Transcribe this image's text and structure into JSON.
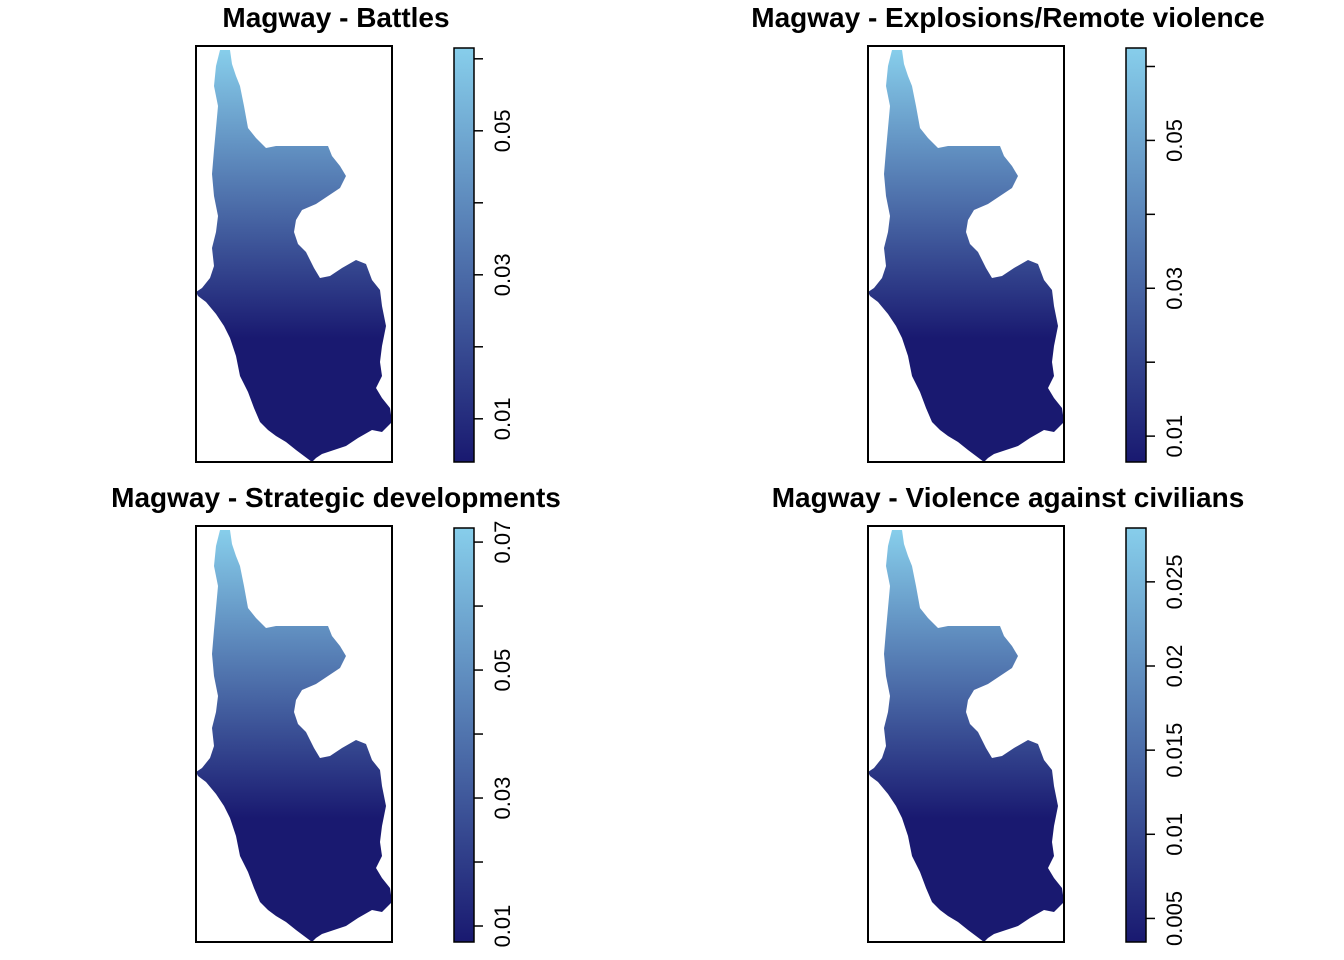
{
  "chart_data": [
    {
      "type": "heatmap",
      "title": "Magway -  Battles",
      "colorbar": {
        "min": 0.004,
        "max": 0.0615,
        "ticks": [
          0.01,
          0.02,
          0.03,
          0.04,
          0.05,
          0.06
        ],
        "tick_labels": [
          "0.01",
          "",
          "0.03",
          "",
          "0.05",
          ""
        ]
      },
      "gradient": {
        "low_color": "#191970",
        "high_color": "#87CEEB",
        "direction": "low-south-high-north"
      },
      "axes": false,
      "grid": false
    },
    {
      "type": "heatmap",
      "title": "Magway -  Explosions/Remote violence",
      "colorbar": {
        "min": 0.0065,
        "max": 0.0625,
        "ticks": [
          0.01,
          0.02,
          0.03,
          0.04,
          0.05,
          0.06
        ],
        "tick_labels": [
          "0.01",
          "",
          "0.03",
          "",
          "0.05",
          ""
        ]
      },
      "gradient": {
        "low_color": "#191970",
        "high_color": "#87CEEB",
        "direction": "low-south-high-north"
      },
      "axes": false,
      "grid": false
    },
    {
      "type": "heatmap",
      "title": "Magway -  Strategic developments",
      "colorbar": {
        "min": 0.0075,
        "max": 0.0722,
        "ticks": [
          0.01,
          0.02,
          0.03,
          0.04,
          0.05,
          0.06,
          0.07
        ],
        "tick_labels": [
          "0.01",
          "",
          "0.03",
          "",
          "0.05",
          "",
          "0.07"
        ]
      },
      "gradient": {
        "low_color": "#191970",
        "high_color": "#87CEEB",
        "direction": "low-south-high-north"
      },
      "axes": false,
      "grid": false
    },
    {
      "type": "heatmap",
      "title": "Magway -  Violence against civilians",
      "colorbar": {
        "min": 0.0036,
        "max": 0.0282,
        "ticks": [
          0.005,
          0.01,
          0.015,
          0.02,
          0.025
        ],
        "tick_labels": [
          "0.005",
          "0.01",
          "0.015",
          "0.02",
          "0.025"
        ]
      },
      "gradient": {
        "low_color": "#191970",
        "high_color": "#87CEEB",
        "direction": "low-south-high-north"
      },
      "axes": false,
      "grid": false
    }
  ],
  "colors": {
    "low": "#191970",
    "high": "#87CEEB",
    "frame": "#000000"
  }
}
